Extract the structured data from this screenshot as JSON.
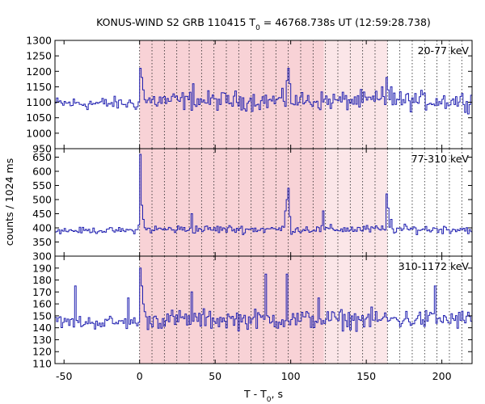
{
  "chart_data": {
    "type": "line",
    "title_parts": [
      "KONUS-WIND S2 GRB 110415 T",
      "0",
      " = 46768.738s UT (12:59:28.738)"
    ],
    "xlabel_parts": [
      "T - T",
      "0",
      ", s"
    ],
    "ylabel": "counts / 1024 ms",
    "xlim": [
      -56,
      220
    ],
    "xticks": [
      -50,
      0,
      50,
      100,
      150,
      200
    ],
    "xtick_labels": [
      "-50",
      "0",
      "50",
      "100",
      "150",
      "200"
    ],
    "line_color": "#2020b0",
    "shade_dark_range": [
      0,
      122
    ],
    "shade_light_range": [
      122,
      164
    ],
    "shade_dark_color": "#f8d2d6",
    "shade_light_color": "#fbe6e8",
    "dotted_lines": [
      0,
      8.2,
      16.4,
      24.6,
      32.8,
      41,
      49.2,
      57.4,
      65.6,
      73.8,
      82,
      90.2,
      98.4,
      106.6,
      114.8,
      123,
      131.2,
      139.4,
      147.6,
      155.8,
      164,
      172.2,
      180.4,
      188.6,
      196.8,
      205,
      213.2
    ],
    "panels": [
      {
        "name": "20-77 keV",
        "ylim": [
          950,
          1300
        ],
        "yticks": [
          950,
          1000,
          1050,
          1100,
          1150,
          1200,
          1250,
          1300
        ],
        "ytick_labels": [
          "950",
          "1000",
          "1050",
          "1100",
          "1150",
          "1200",
          "1250",
          "1300"
        ],
        "baseline": 1105,
        "noise": 45,
        "peaks": [
          [
            0,
            1210
          ],
          [
            1,
            1180
          ],
          [
            2,
            1140
          ],
          [
            35,
            1160
          ],
          [
            97,
            1170
          ],
          [
            98,
            1210
          ],
          [
            99,
            1160
          ],
          [
            160,
            1150
          ],
          [
            163,
            1180
          ],
          [
            164,
            1140
          ],
          [
            166,
            1150
          ],
          [
            168,
            1130
          ]
        ]
      },
      {
        "name": "77-310 keV",
        "ylim": [
          300,
          680
        ],
        "yticks": [
          300,
          350,
          400,
          450,
          500,
          550,
          600,
          650
        ],
        "ytick_labels": [
          "300",
          "350",
          "400",
          "450",
          "500",
          "550",
          "600",
          "650"
        ],
        "baseline": 395,
        "noise": 22,
        "peaks": [
          [
            -1,
            410
          ],
          [
            0,
            660
          ],
          [
            1,
            480
          ],
          [
            2,
            430
          ],
          [
            34,
            450
          ],
          [
            96,
            460
          ],
          [
            97,
            500
          ],
          [
            98,
            540
          ],
          [
            99,
            440
          ],
          [
            121,
            460
          ],
          [
            163,
            520
          ],
          [
            164,
            470
          ],
          [
            166,
            430
          ]
        ]
      },
      {
        "name": "310-1172 keV",
        "ylim": [
          110,
          200
        ],
        "yticks": [
          110,
          120,
          130,
          140,
          150,
          160,
          170,
          180,
          190
        ],
        "ytick_labels": [
          "110",
          "120",
          "130",
          "140",
          "150",
          "160",
          "170",
          "180",
          "190"
        ],
        "baseline": 147,
        "noise": 12,
        "peaks": [
          [
            -43,
            175
          ],
          [
            -8,
            165
          ],
          [
            0,
            190
          ],
          [
            1,
            175
          ],
          [
            2,
            160
          ],
          [
            34,
            170
          ],
          [
            83,
            185
          ],
          [
            97,
            185
          ],
          [
            118,
            165
          ],
          [
            195,
            175
          ]
        ]
      }
    ]
  }
}
